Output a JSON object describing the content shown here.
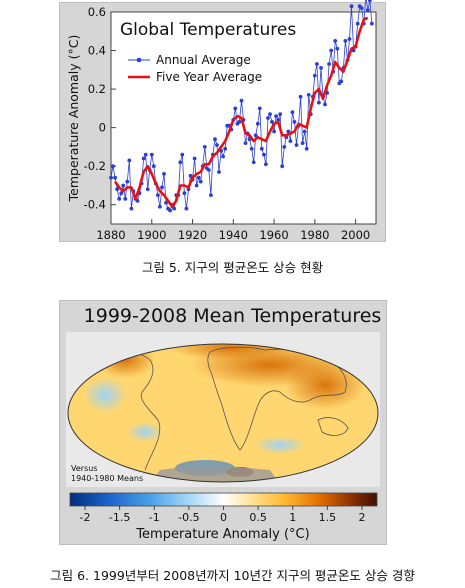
{
  "figure1": {
    "caption": "그림 5. 지구의 평균온도 상승 현황"
  },
  "figure2": {
    "caption": "그림 6. 1999년부터 2008년까지 10년간 지구의 평균온도 상승 경향",
    "map_title": "1999-2008 Mean Temperatures",
    "versus_line1": "Versus",
    "versus_line2": "1940-1980 Means",
    "colorbar_label": "Temperature Anomaly (°C)",
    "colorbar_ticks": [
      "-2",
      "-1.5",
      "-1",
      "-0.5",
      "0",
      "0.5",
      "1",
      "1.5",
      "2"
    ],
    "colorbar_colors": [
      "#00307a",
      "#1a60c8",
      "#4aa0e8",
      "#9fd4f5",
      "#ffffff",
      "#ffe08a",
      "#ffb830",
      "#e06a00",
      "#8a2d00",
      "#3d1200"
    ]
  },
  "chart_data": [
    {
      "type": "line",
      "title": "Global Temperatures",
      "xlabel": "",
      "ylabel": "Temperature Anomaly (°C)",
      "xlim": [
        1880,
        2010
      ],
      "ylim": [
        -0.5,
        0.6
      ],
      "x_ticks": [
        "1880",
        "1900",
        "1920",
        "1940",
        "1960",
        "1980",
        "2000"
      ],
      "y_ticks": [
        "-0.4",
        "-0.2",
        "0",
        "0.2",
        "0.4",
        "0.6"
      ],
      "legend_position": "top-left",
      "series": [
        {
          "name": "Annual Average",
          "color": "#2b3fd6",
          "marker": "dot",
          "x": [
            1880,
            1881,
            1882,
            1883,
            1884,
            1885,
            1886,
            1887,
            1888,
            1889,
            1890,
            1891,
            1892,
            1893,
            1894,
            1895,
            1896,
            1897,
            1898,
            1899,
            1900,
            1901,
            1902,
            1903,
            1904,
            1905,
            1906,
            1907,
            1908,
            1909,
            1910,
            1911,
            1912,
            1913,
            1914,
            1915,
            1916,
            1917,
            1918,
            1919,
            1920,
            1921,
            1922,
            1923,
            1924,
            1925,
            1926,
            1927,
            1928,
            1929,
            1930,
            1931,
            1932,
            1933,
            1934,
            1935,
            1936,
            1937,
            1938,
            1939,
            1940,
            1941,
            1942,
            1943,
            1944,
            1945,
            1946,
            1947,
            1948,
            1949,
            1950,
            1951,
            1952,
            1953,
            1954,
            1955,
            1956,
            1957,
            1958,
            1959,
            1960,
            1961,
            1962,
            1963,
            1964,
            1965,
            1966,
            1967,
            1968,
            1969,
            1970,
            1971,
            1972,
            1973,
            1974,
            1975,
            1976,
            1977,
            1978,
            1979,
            1980,
            1981,
            1982,
            1983,
            1984,
            1985,
            1986,
            1987,
            1988,
            1989,
            1990,
            1991,
            1992,
            1993,
            1994,
            1995,
            1996,
            1997,
            1998,
            1999,
            2000,
            2001,
            2002,
            2003,
            2004,
            2005,
            2006,
            2007,
            2008
          ],
          "values": [
            -0.26,
            -0.2,
            -0.26,
            -0.32,
            -0.37,
            -0.34,
            -0.3,
            -0.37,
            -0.28,
            -0.17,
            -0.42,
            -0.33,
            -0.37,
            -0.38,
            -0.34,
            -0.29,
            -0.16,
            -0.14,
            -0.32,
            -0.22,
            -0.14,
            -0.2,
            -0.29,
            -0.35,
            -0.41,
            -0.31,
            -0.24,
            -0.39,
            -0.42,
            -0.43,
            -0.4,
            -0.42,
            -0.35,
            -0.35,
            -0.18,
            -0.14,
            -0.34,
            -0.42,
            -0.32,
            -0.25,
            -0.27,
            -0.16,
            -0.3,
            -0.26,
            -0.28,
            -0.2,
            -0.1,
            -0.21,
            -0.22,
            -0.35,
            -0.14,
            -0.06,
            -0.09,
            -0.23,
            -0.12,
            -0.15,
            -0.11,
            0.01,
            0.01,
            -0.01,
            0.04,
            0.1,
            0.02,
            0.03,
            0.14,
            0.04,
            -0.08,
            -0.03,
            -0.06,
            -0.11,
            -0.18,
            -0.04,
            0.02,
            0.1,
            -0.11,
            -0.14,
            -0.19,
            0.05,
            0.07,
            0.03,
            -0.02,
            0.06,
            0.04,
            0.07,
            -0.2,
            -0.1,
            -0.05,
            -0.02,
            -0.07,
            0.08,
            0.03,
            -0.09,
            0.01,
            0.16,
            -0.08,
            -0.02,
            -0.11,
            0.17,
            0.07,
            0.16,
            0.27,
            0.33,
            0.13,
            0.31,
            0.16,
            0.12,
            0.18,
            0.33,
            0.4,
            0.29,
            0.45,
            0.41,
            0.23,
            0.24,
            0.31,
            0.45,
            0.35,
            0.46,
            0.63,
            0.4,
            0.42,
            0.54,
            0.63,
            0.62,
            0.54,
            0.68,
            0.61,
            0.66,
            0.54
          ]
        },
        {
          "name": "Five Year Average",
          "color": "#e81010",
          "marker": "none",
          "x": [
            1882,
            1884,
            1886,
            1888,
            1890,
            1892,
            1894,
            1896,
            1898,
            1900,
            1902,
            1904,
            1906,
            1908,
            1910,
            1912,
            1914,
            1916,
            1918,
            1920,
            1922,
            1924,
            1926,
            1928,
            1930,
            1932,
            1934,
            1936,
            1938,
            1940,
            1942,
            1944,
            1946,
            1948,
            1950,
            1952,
            1954,
            1956,
            1958,
            1960,
            1962,
            1964,
            1966,
            1968,
            1970,
            1972,
            1974,
            1976,
            1978,
            1980,
            1982,
            1984,
            1986,
            1988,
            1990,
            1992,
            1994,
            1996,
            1998,
            2000,
            2002,
            2004,
            2006
          ],
          "values": [
            -0.28,
            -0.31,
            -0.33,
            -0.31,
            -0.31,
            -0.37,
            -0.31,
            -0.23,
            -0.2,
            -0.24,
            -0.29,
            -0.33,
            -0.35,
            -0.38,
            -0.41,
            -0.38,
            -0.3,
            -0.3,
            -0.31,
            -0.26,
            -0.24,
            -0.23,
            -0.19,
            -0.19,
            -0.15,
            -0.13,
            -0.1,
            -0.07,
            -0.02,
            0.04,
            0.06,
            0.05,
            -0.03,
            -0.04,
            -0.07,
            -0.05,
            -0.06,
            -0.07,
            -0.02,
            0.02,
            0.03,
            -0.04,
            -0.04,
            -0.03,
            -0.02,
            0.02,
            0.01,
            0.0,
            0.1,
            0.18,
            0.2,
            0.15,
            0.22,
            0.27,
            0.34,
            0.31,
            0.29,
            0.35,
            0.41,
            0.42,
            0.5,
            0.56,
            0.57
          ]
        }
      ]
    }
  ]
}
